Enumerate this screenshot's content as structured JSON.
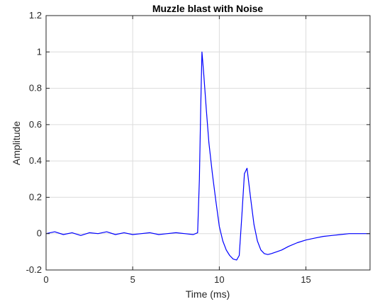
{
  "chart_data": {
    "type": "line",
    "title": "Muzzle blast with Noise",
    "xlabel": "Time (ms)",
    "ylabel": "Amplitude",
    "xlim": [
      0,
      18.7
    ],
    "ylim": [
      -0.2,
      1.2
    ],
    "xticks": [
      "0",
      "5",
      "10",
      "15"
    ],
    "xtick_values": [
      0,
      5,
      10,
      15
    ],
    "yticks": [
      "-0.2",
      "0",
      "0.2",
      "0.4",
      "0.6",
      "0.8",
      "1",
      "1.2"
    ],
    "ytick_values": [
      -0.2,
      0,
      0.2,
      0.4,
      0.6,
      0.8,
      1.0,
      1.2
    ],
    "grid": true,
    "line_color": "#0000ff",
    "series": [
      {
        "x": [
          0,
          0.5,
          1,
          1.5,
          2,
          2.5,
          3,
          3.5,
          4,
          4.5,
          5,
          5.5,
          6,
          6.5,
          7,
          7.5,
          8,
          8.5,
          8.75,
          8.85,
          8.93,
          9.0,
          9.1,
          9.25,
          9.4,
          9.6,
          9.8,
          10.0,
          10.2,
          10.4,
          10.6,
          10.8,
          11.0,
          11.15,
          11.3,
          11.45,
          11.6,
          11.8,
          12.0,
          12.2,
          12.4,
          12.6,
          12.8,
          13.0,
          13.3,
          13.6,
          14.0,
          14.5,
          15.0,
          15.5,
          16.0,
          16.5,
          17.0,
          17.5,
          18.0,
          18.7
        ],
        "y": [
          0.0,
          0.01,
          -0.005,
          0.005,
          -0.01,
          0.005,
          0.0,
          0.01,
          -0.005,
          0.005,
          -0.005,
          0.0,
          0.005,
          -0.005,
          0.0,
          0.005,
          0.0,
          -0.005,
          0.005,
          0.3,
          0.7,
          1.0,
          0.88,
          0.68,
          0.5,
          0.33,
          0.18,
          0.04,
          -0.04,
          -0.09,
          -0.12,
          -0.14,
          -0.145,
          -0.12,
          0.1,
          0.33,
          0.36,
          0.2,
          0.05,
          -0.04,
          -0.09,
          -0.11,
          -0.115,
          -0.11,
          -0.1,
          -0.09,
          -0.07,
          -0.05,
          -0.035,
          -0.025,
          -0.015,
          -0.01,
          -0.005,
          0.0,
          0.0,
          0.0
        ]
      }
    ]
  }
}
